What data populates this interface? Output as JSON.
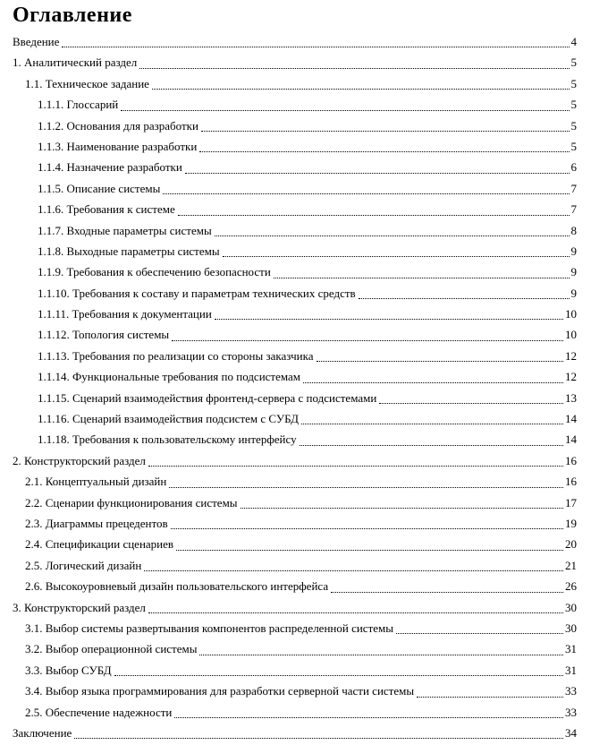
{
  "page": {
    "title": "Оглавление"
  },
  "toc": {
    "entries": [
      {
        "label": "Введение",
        "page": "4",
        "level": 0
      },
      {
        "label": "1. Аналитический раздел",
        "page": "5",
        "level": 0
      },
      {
        "label": "1.1. Техническое задание",
        "page": "5",
        "level": 1
      },
      {
        "label": "1.1.1. Глоссарий",
        "page": "5",
        "level": 2
      },
      {
        "label": "1.1.2. Основания для разработки",
        "page": "5",
        "level": 2
      },
      {
        "label": "1.1.3. Наименование разработки",
        "page": "5",
        "level": 2
      },
      {
        "label": "1.1.4. Назначение разработки",
        "page": "6",
        "level": 2
      },
      {
        "label": "1.1.5. Описание системы",
        "page": "7",
        "level": 2
      },
      {
        "label": "1.1.6. Требования к системе",
        "page": "7",
        "level": 2
      },
      {
        "label": "1.1.7. Входные параметры системы",
        "page": "8",
        "level": 2
      },
      {
        "label": "1.1.8. Выходные параметры системы",
        "page": "9",
        "level": 2
      },
      {
        "label": "1.1.9. Требования к обеспечению безопасности",
        "page": "9",
        "level": 2
      },
      {
        "label": "1.1.10. Требования к составу и параметрам технических средств",
        "page": "9",
        "level": 2
      },
      {
        "label": "1.1.11. Требования к документации",
        "page": "10",
        "level": 2
      },
      {
        "label": "1.1.12. Топология системы",
        "page": "10",
        "level": 2
      },
      {
        "label": "1.1.13. Требования по реализации со стороны заказчика",
        "page": "12",
        "level": 2
      },
      {
        "label": "1.1.14. Функциональные требования по подсистемам",
        "page": "12",
        "level": 2
      },
      {
        "label": "1.1.15. Сценарий взаимодействия фронтенд-сервера с подсистемами",
        "page": "13",
        "level": 2
      },
      {
        "label": "1.1.16. Сценарий взаимодействия подсистем с СУБД",
        "page": "14",
        "level": 2
      },
      {
        "label": "1.1.18. Требования к пользовательскому интерфейсу",
        "page": "14",
        "level": 2
      },
      {
        "label": "2. Конструкторский раздел",
        "page": "16",
        "level": 0
      },
      {
        "label": "2.1. Концептуальный дизайн",
        "page": "16",
        "level": 1
      },
      {
        "label": "2.2. Сценарии функционирования системы",
        "page": "17",
        "level": 1
      },
      {
        "label": "2.3. Диаграммы прецедентов",
        "page": "19",
        "level": 1
      },
      {
        "label": "2.4. Спецификации сценариев",
        "page": "20",
        "level": 1
      },
      {
        "label": "2.5. Логический дизайн",
        "page": "21",
        "level": 1
      },
      {
        "label": "2.6. Высокоуровневый дизайн пользовательского интерфейса",
        "page": "26",
        "level": 1
      },
      {
        "label": "3. Конструкторский раздел",
        "page": "30",
        "level": 0
      },
      {
        "label": "3.1. Выбор системы развертывания компонентов распределенной системы",
        "page": "30",
        "level": 1
      },
      {
        "label": "3.2. Выбор операционной системы",
        "page": "31",
        "level": 1
      },
      {
        "label": "3.3. Выбор СУБД",
        "page": "31",
        "level": 1
      },
      {
        "label": "3.4. Выбор языка программирования для разработки серверной части системы",
        "page": "33",
        "level": 1
      },
      {
        "label": "2.5. Обеспечение надежности",
        "page": "33",
        "level": 1
      },
      {
        "label": "Заключение",
        "page": "34",
        "level": 0
      }
    ]
  }
}
